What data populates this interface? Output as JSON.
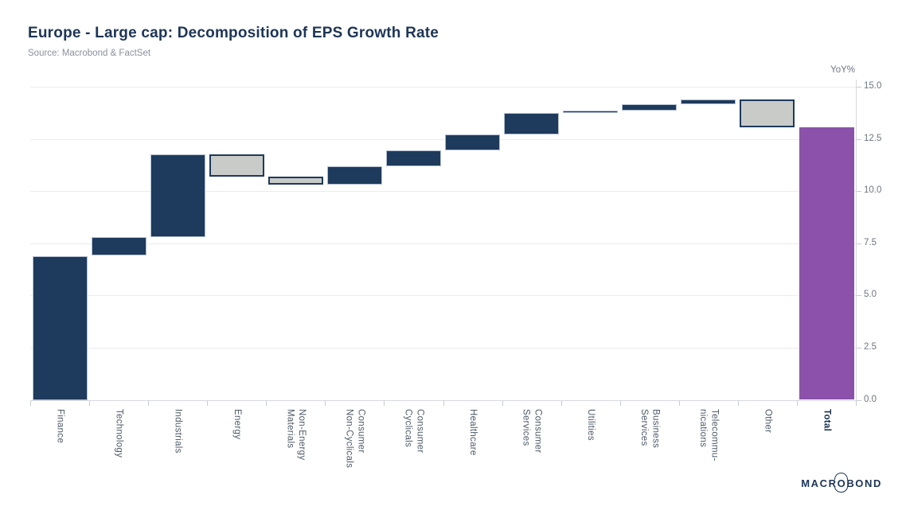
{
  "header": {
    "title": "Europe - Large cap: Decomposition of EPS Growth Rate",
    "source": "Source: Macrobond & FactSet"
  },
  "chart_data": {
    "type": "bar",
    "subtype": "waterfall",
    "title": "Europe - Large cap: Decomposition of EPS Growth Rate",
    "unit_label": "YoY%",
    "ylim": [
      0.0,
      15.0
    ],
    "y_ticks": [
      "0.0",
      "2.5",
      "5.0",
      "7.5",
      "10.0",
      "12.5",
      "15.0"
    ],
    "grid": "horizontal",
    "legend": "none",
    "categories": [
      "Finance",
      "Technology",
      "Industrials",
      "Energy",
      "Non-Energy Materials",
      "Consumer Non-Cyclicals",
      "Consumer Cyclicals",
      "Healthcare",
      "Consumer Services",
      "Utilities",
      "Business Services",
      "Telecommunications",
      "Other",
      "Total"
    ],
    "bars": [
      {
        "label": "Finance",
        "lines": [
          "Finance"
        ],
        "start": 0.0,
        "end": 6.9,
        "contribution": 6.9,
        "kind": "increase"
      },
      {
        "label": "Technology",
        "lines": [
          "Technology"
        ],
        "start": 6.9,
        "end": 7.8,
        "contribution": 0.9,
        "kind": "increase"
      },
      {
        "label": "Industrials",
        "lines": [
          "Industrials"
        ],
        "start": 7.8,
        "end": 11.75,
        "contribution": 3.95,
        "kind": "increase"
      },
      {
        "label": "Energy",
        "lines": [
          "Energy"
        ],
        "start": 11.75,
        "end": 10.7,
        "contribution": -1.05,
        "kind": "decrease"
      },
      {
        "label": "Non-Energy Materials",
        "lines": [
          "Non-Energy",
          "Materials"
        ],
        "start": 10.7,
        "end": 10.3,
        "contribution": -0.4,
        "kind": "decrease"
      },
      {
        "label": "Consumer Non-Cyclicals",
        "lines": [
          "Consumer",
          "Non-Cyclicals"
        ],
        "start": 10.3,
        "end": 11.2,
        "contribution": 0.9,
        "kind": "increase"
      },
      {
        "label": "Consumer Cyclicals",
        "lines": [
          "Consumer",
          "Cyclicals"
        ],
        "start": 11.2,
        "end": 11.95,
        "contribution": 0.75,
        "kind": "increase"
      },
      {
        "label": "Healthcare",
        "lines": [
          "Healthcare"
        ],
        "start": 11.95,
        "end": 12.7,
        "contribution": 0.75,
        "kind": "increase"
      },
      {
        "label": "Consumer Services",
        "lines": [
          "Consumer",
          "Services"
        ],
        "start": 12.7,
        "end": 13.75,
        "contribution": 1.05,
        "kind": "increase"
      },
      {
        "label": "Utilities",
        "lines": [
          "Utilities"
        ],
        "start": 13.75,
        "end": 13.85,
        "contribution": 0.1,
        "kind": "increase"
      },
      {
        "label": "Business Services",
        "lines": [
          "Business",
          "Services"
        ],
        "start": 13.85,
        "end": 14.15,
        "contribution": 0.3,
        "kind": "increase"
      },
      {
        "label": "Telecommunications",
        "lines": [
          "Telecommu-",
          "nications"
        ],
        "start": 14.15,
        "end": 14.4,
        "contribution": 0.25,
        "kind": "increase"
      },
      {
        "label": "Other",
        "lines": [
          "Other"
        ],
        "start": 14.4,
        "end": 13.05,
        "contribution": -1.35,
        "kind": "decrease"
      },
      {
        "label": "Total",
        "lines": [
          "Total"
        ],
        "start": 0.0,
        "end": 13.05,
        "contribution": 13.05,
        "kind": "total",
        "bold": true
      }
    ],
    "colors": {
      "increase_fill": "#1e3a5c",
      "decrease_fill": "#c9cbc9",
      "decrease_border": "#1e3a5c",
      "total_fill": "#8c52ab",
      "title_navy": "#1d3557",
      "gridline": "#ececef"
    }
  },
  "footer": {
    "logo_left": "MACR",
    "logo_o": "O",
    "logo_right": "BOND"
  }
}
